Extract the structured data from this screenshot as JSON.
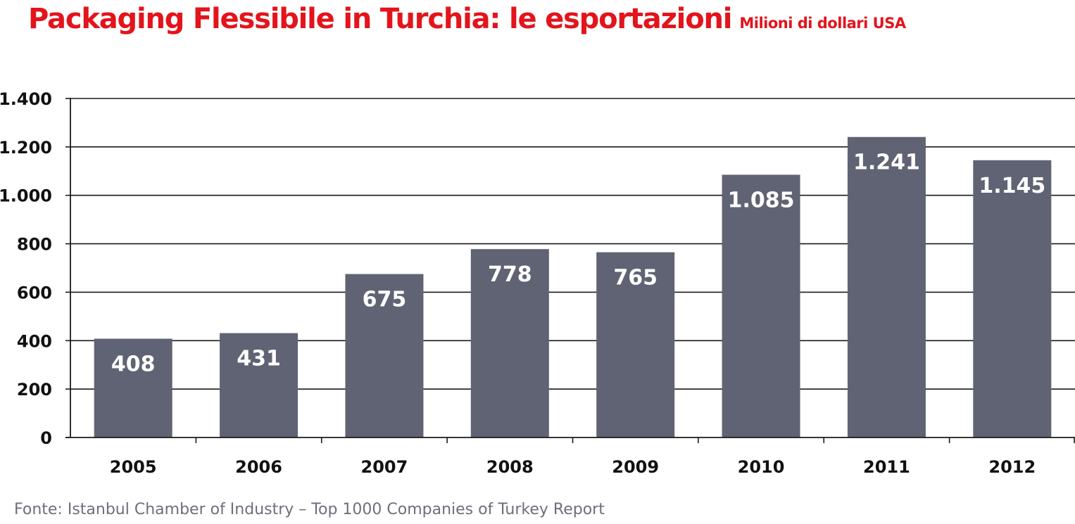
{
  "chart_data": {
    "type": "bar",
    "title": "Packaging Flessibile in Turchia: le esportazioni",
    "subtitle": "Milioni di dollari USA",
    "categories": [
      "2005",
      "2006",
      "2007",
      "2008",
      "2009",
      "2010",
      "2011",
      "2012"
    ],
    "values": [
      408,
      431,
      675,
      778,
      765,
      1085,
      1241,
      1145
    ],
    "value_labels": [
      "408",
      "431",
      "675",
      "778",
      "765",
      "1.085",
      "1.241",
      "1.145"
    ],
    "ylim": [
      0,
      1400
    ],
    "yticks": [
      0,
      200,
      400,
      600,
      800,
      1000,
      1200,
      1400
    ],
    "ytick_labels": [
      "0",
      "200",
      "400",
      "600",
      "800",
      "1.000",
      "1.200",
      "1.400"
    ],
    "grid": true,
    "bar_color": "#606373",
    "title_color": "#e3141b"
  },
  "source": "Fonte: Istanbul Chamber of Industry – Top 1000 Companies of Turkey Report"
}
